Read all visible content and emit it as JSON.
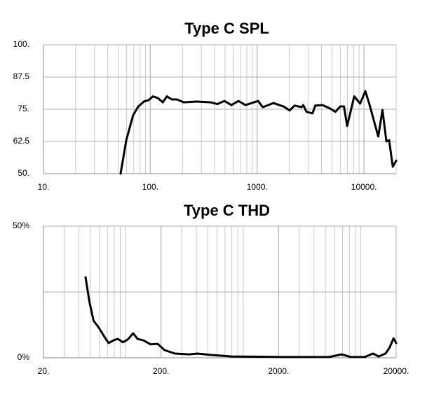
{
  "chart_data": [
    {
      "type": "line",
      "title": "Type C SPL",
      "log_x": true,
      "grid": true,
      "minor_grid": true,
      "xlim": [
        10,
        20000
      ],
      "xticks": [
        {
          "value": 10,
          "label": "10."
        },
        {
          "value": 100,
          "label": "100."
        },
        {
          "value": 1000,
          "label": "1000."
        },
        {
          "value": 10000,
          "label": "10000."
        }
      ],
      "ylim": [
        50,
        100
      ],
      "yticks": [
        {
          "value": 50,
          "label": "50."
        },
        62.5,
        {
          "value": 75,
          "label": "75."
        },
        87.5,
        {
          "value": 100,
          "label": "100."
        }
      ],
      "series": [
        {
          "color": "#000000",
          "x": [
            52.7,
            59.6,
            69,
            77,
            87,
            96,
            106,
            118,
            131,
            143,
            159,
            177,
            206,
            270,
            366,
            424,
            493,
            574,
            667,
            777,
            1020,
            1130,
            1420,
            1780,
            2010,
            2240,
            2600,
            2700,
            2900,
            3300,
            3500,
            4100,
            4800,
            5400,
            6000,
            6500,
            6950,
            8100,
            9200,
            10300,
            11300,
            13600,
            14900,
            16200,
            17200,
            18600,
            20000
          ],
          "values": [
            50,
            63,
            72.6,
            76,
            78,
            78.5,
            80,
            79.3,
            77.7,
            80,
            78.8,
            78.8,
            77.7,
            78,
            77.7,
            77,
            78.2,
            76.6,
            78.2,
            76.6,
            78.2,
            75.8,
            77.4,
            76,
            74.5,
            76.4,
            75.8,
            76.6,
            74,
            73.4,
            76.4,
            76.6,
            75.3,
            74,
            76.1,
            76.1,
            68.5,
            80,
            77.2,
            82,
            76.6,
            64.4,
            74.7,
            62.5,
            63,
            52.7,
            55
          ]
        }
      ]
    },
    {
      "type": "line",
      "title": "Type C THD",
      "log_x": true,
      "grid": true,
      "minor_grid": true,
      "xlim": [
        20,
        20000
      ],
      "xticks": [
        {
          "value": 20,
          "label": "20."
        },
        {
          "value": 200,
          "label": "200."
        },
        {
          "value": 2000,
          "label": "2000."
        },
        {
          "value": 20000,
          "label": "20000."
        }
      ],
      "ylim": [
        0,
        50
      ],
      "yticks": [
        {
          "value": 0,
          "label": "0%"
        },
        {
          "value": 50,
          "label": "50%"
        }
      ],
      "ygrid": [
        0,
        25,
        50
      ],
      "series": [
        {
          "color": "#000000",
          "x": [
            45.6,
            49.1,
            53.3,
            58.6,
            64.3,
            71.5,
            78.8,
            85.6,
            94.7,
            104,
            116,
            126,
            142,
            163,
            187,
            215,
            263,
            348,
            409,
            527,
            797,
            2100,
            5370,
            6900,
            8200,
            10800,
            12700,
            14200,
            16200,
            17500,
            19000,
            20000
          ],
          "values": [
            30.6,
            21.5,
            14.1,
            11.7,
            8.8,
            5.6,
            6.6,
            7.2,
            5.9,
            6.9,
            9.3,
            7.2,
            6.6,
            5.1,
            5.3,
            2.9,
            1.6,
            1.3,
            1.6,
            1.1,
            0.5,
            0.3,
            0.3,
            1.3,
            0.3,
            0.3,
            1.6,
            0.5,
            1.6,
            3.7,
            7.4,
            5.6
          ]
        }
      ]
    }
  ]
}
